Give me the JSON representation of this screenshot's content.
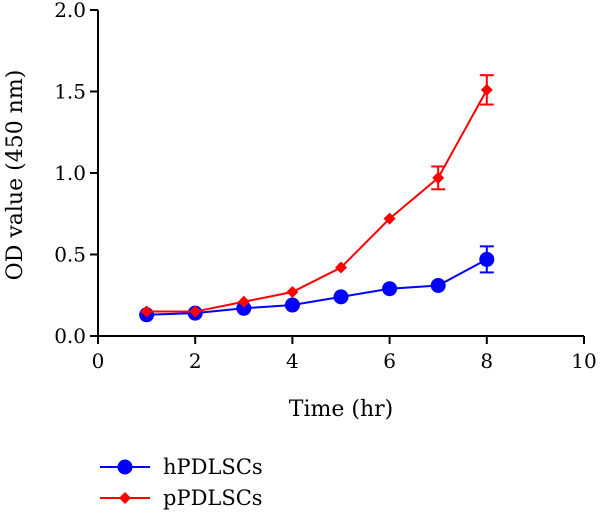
{
  "chart_data": {
    "type": "line",
    "title": "",
    "xlabel": "Time (hr)",
    "ylabel": "OD value (450 nm)",
    "xlim": [
      0,
      10
    ],
    "ylim": [
      0,
      2.0
    ],
    "x_ticks": [
      0,
      2,
      4,
      6,
      8,
      10
    ],
    "x_tick_labels": [
      "0",
      "2",
      "4",
      "6",
      "8",
      "10"
    ],
    "y_ticks": [
      0,
      0.5,
      1.0,
      1.5,
      2.0
    ],
    "y_tick_labels": [
      "0.0",
      "0.5",
      "1.0",
      "1.5",
      "2.0"
    ],
    "grid": false,
    "legend_position": "bottom-left",
    "series": [
      {
        "name": "hPDLSCs",
        "color": "#0000ff",
        "marker": "circle",
        "x": [
          1,
          2,
          3,
          4,
          5,
          6,
          7,
          8
        ],
        "y": [
          0.13,
          0.14,
          0.17,
          0.19,
          0.24,
          0.29,
          0.31,
          0.47
        ],
        "error": [
          0.01,
          0.01,
          0.01,
          0.01,
          0.01,
          0.01,
          0.01,
          0.08
        ]
      },
      {
        "name": "pPDLSCs",
        "color": "#ff0000",
        "marker": "diamond",
        "x": [
          1,
          2,
          3,
          4,
          5,
          6,
          7,
          8
        ],
        "y": [
          0.15,
          0.15,
          0.21,
          0.27,
          0.42,
          0.72,
          0.97,
          1.51
        ],
        "error": [
          0.01,
          0.01,
          0.01,
          0.01,
          0.01,
          0.02,
          0.07,
          0.09
        ]
      }
    ]
  }
}
